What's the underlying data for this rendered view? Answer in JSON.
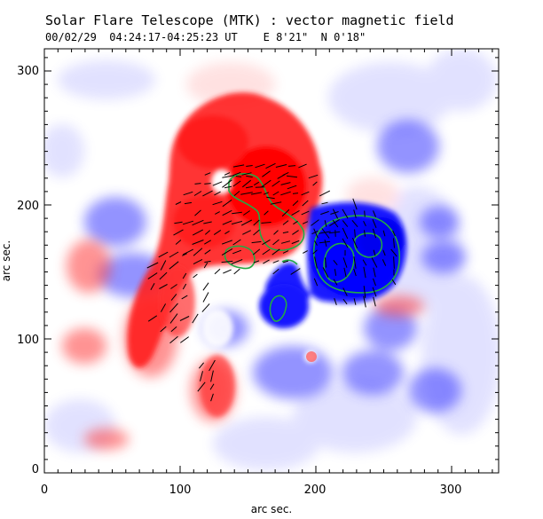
{
  "header": {
    "title": "Solar Flare Telescope (MTK) : vector magnetic field",
    "subtitle": "00/02/29  04:24:17-04:25:23 UT    E 8'21\"  N 0'18\""
  },
  "axes": {
    "xlabel": "arc sec.",
    "ylabel": "arc sec.",
    "x_ticks": [
      "0",
      "100",
      "200",
      "300"
    ],
    "y_ticks": [
      "0",
      "100",
      "200",
      "300"
    ]
  },
  "colors": {
    "positive_polarity": "#ff2a2a",
    "negative_polarity": "#2a2aff",
    "contour": "#22aa44",
    "vectors": "#000000"
  }
}
